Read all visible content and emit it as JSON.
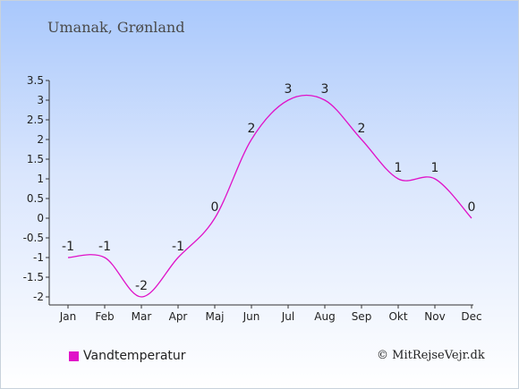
{
  "title": "Umanak, Grønland",
  "credit": "© MitRejseVejr.dk",
  "colors": {
    "series": "#e012c8"
  },
  "chart_data": {
    "type": "line",
    "title": "Umanak, Grønland",
    "xlabel": "",
    "ylabel": "",
    "categories": [
      "Jan",
      "Feb",
      "Mar",
      "Apr",
      "Maj",
      "Jun",
      "Jul",
      "Aug",
      "Sep",
      "Okt",
      "Nov",
      "Dec"
    ],
    "series": [
      {
        "name": "Vandtemperatur",
        "values": [
          -1,
          -1,
          -2,
          -1,
          0,
          2,
          3,
          3,
          2,
          1,
          1,
          0
        ],
        "labels": [
          "-1",
          "-1",
          "-2",
          "-1",
          "0",
          "2",
          "3",
          "3",
          "2",
          "1",
          "1",
          "0"
        ]
      }
    ],
    "ylim": [
      -2,
      3.5
    ],
    "yticks": [
      "-2",
      "-1.5",
      "-1",
      "-0.5",
      "0",
      "0.5",
      "1",
      "1.5",
      "2",
      "2.5",
      "3",
      "3.5"
    ],
    "grid": false,
    "legend": "bottom-left"
  }
}
